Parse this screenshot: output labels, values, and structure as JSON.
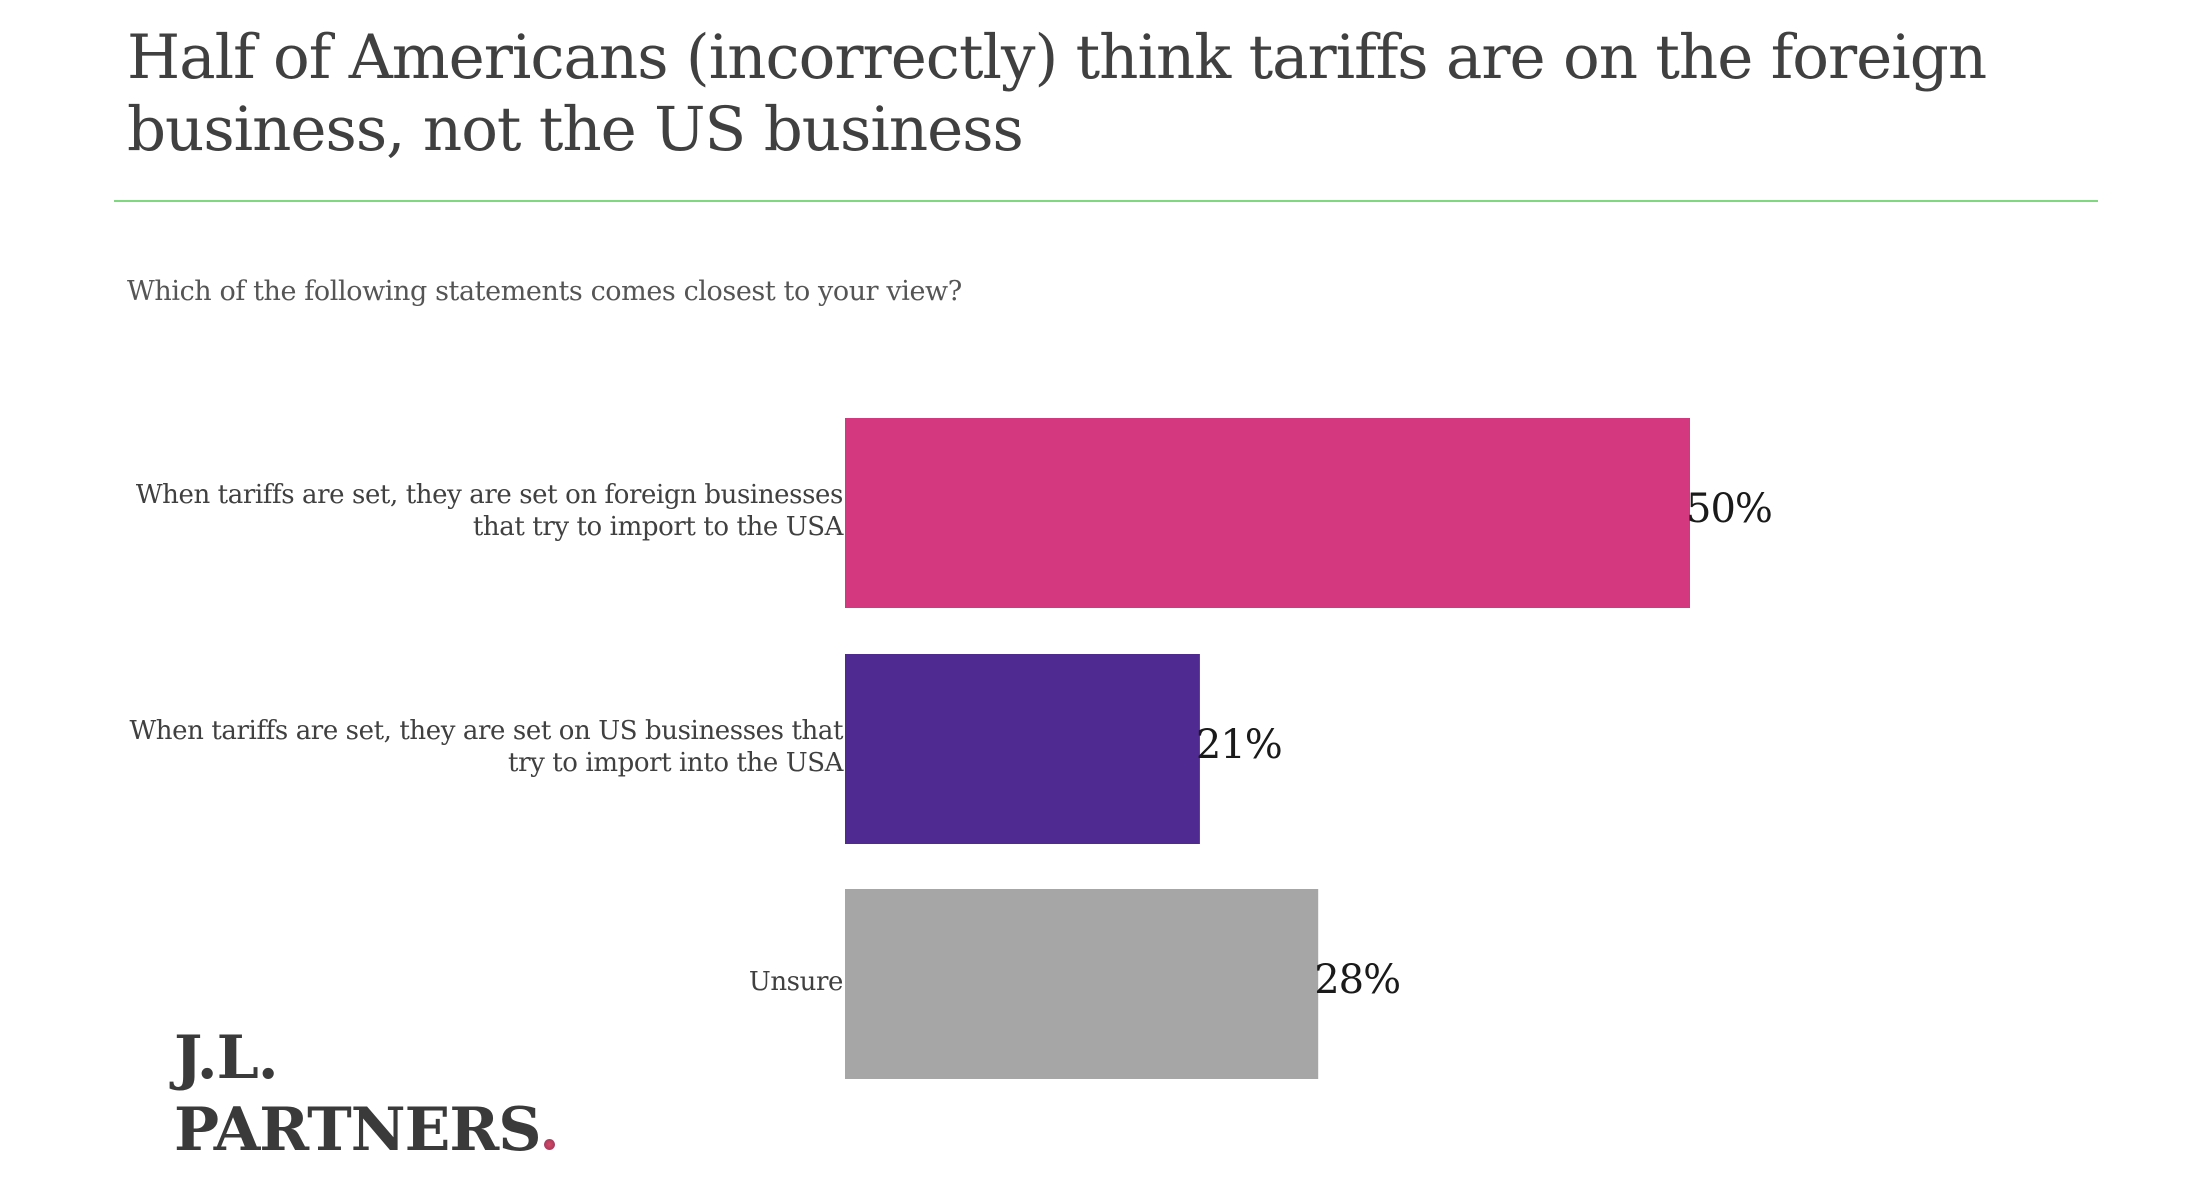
{
  "title": "Half of Americans (incorrectly) think tariffs are on the foreign business, not the US business",
  "question": "Which of the following statements comes closest to your view?",
  "logo": {
    "line1": "J.L.",
    "line2": "PARTNERS",
    "dot": "."
  },
  "colors": {
    "rule": "#7fd87f",
    "bar1": "#d4387e",
    "bar2": "#4e2a91",
    "bar3": "#a6a6a6"
  },
  "chart_data": {
    "type": "bar",
    "orientation": "horizontal",
    "categories": [
      "When tariffs are set, they are set on foreign businesses that try to import to the USA",
      "When tariffs are set, they are set on US businesses that try to import into the USA",
      "Unsure"
    ],
    "category_lines": [
      [
        "When tariffs are set, they are set on foreign businesses",
        "that try to import to the USA"
      ],
      [
        "When tariffs are set, they are set on US businesses that",
        "try to import into the USA"
      ],
      [
        "Unsure"
      ]
    ],
    "values": [
      50,
      21,
      28
    ],
    "value_labels": [
      "50%",
      "21%",
      "28%"
    ],
    "colors": [
      "#d4387e",
      "#4e2a91",
      "#a6a6a6"
    ],
    "unit": "%",
    "grid": false,
    "legend": "none"
  }
}
